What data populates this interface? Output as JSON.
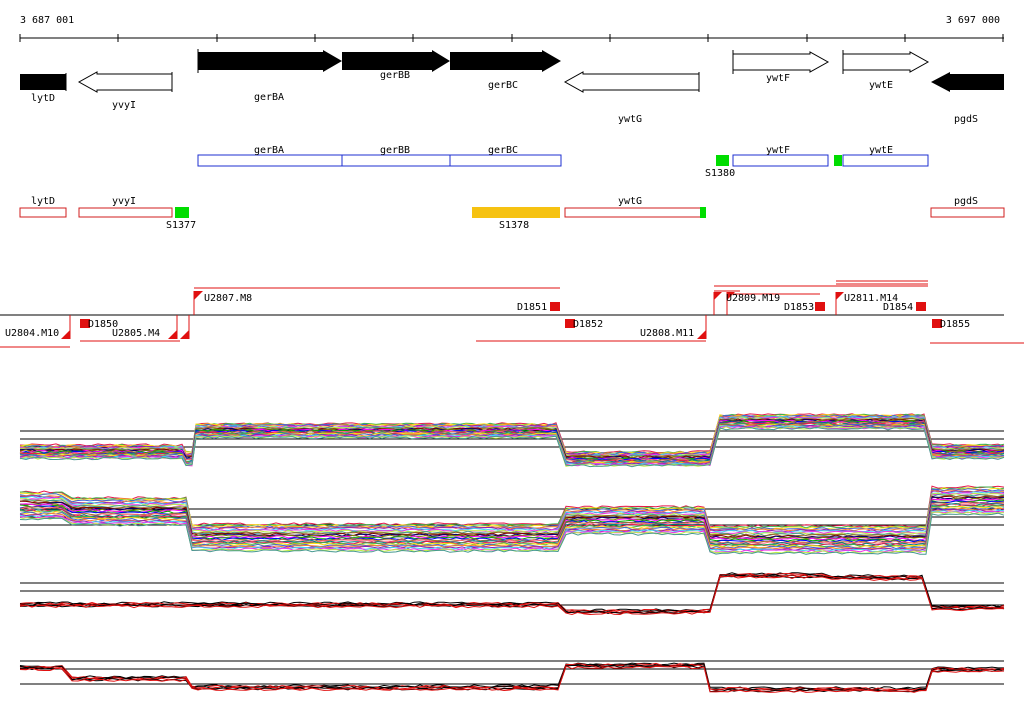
{
  "coordinates": {
    "start": "3 687 001",
    "end": "3 697 000"
  },
  "genes": [
    "lytD",
    "yvyI",
    "gerBA",
    "gerBB",
    "gerBC",
    "ywtG",
    "ywtF",
    "ywtE",
    "pgdS"
  ],
  "transcription_units": {
    "forward": [
      "gerBA",
      "gerBB",
      "gerBC",
      "ywtF",
      "ywtE"
    ],
    "reverse": [
      "lytD",
      "yvyI",
      "ywtG",
      "pgdS"
    ]
  },
  "signals": [
    "S1377",
    "S1378",
    "S1380"
  ],
  "segments": {
    "upstream": [
      "U2807.M8",
      "U2809.M19",
      "U2811.M14"
    ],
    "downstream": [
      "U2804.M10",
      "U2805.M4",
      "U2808.M11"
    ]
  },
  "breakpoints": [
    "D1850",
    "D1851",
    "D1852",
    "D1853",
    "D1854",
    "D1855"
  ],
  "colors": {
    "forward_box": "#1c2fd0",
    "reverse_box": "#d01c1c",
    "signal_green": "#00dd00",
    "signal_yellow": "#f6c211",
    "segment_line": "#e01010"
  }
}
